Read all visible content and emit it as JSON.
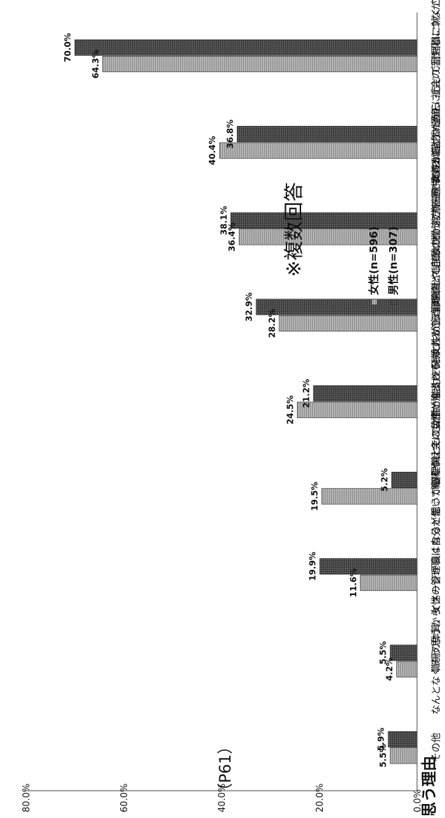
{
  "chart_data": {
    "type": "bar",
    "orientation": "horizontal",
    "categories": [
      "女性が能力・適正に応じて管理職に就くことは当然だから",
      "管理職として女性が能力を発揮することは経済、社会の活性化につながるから",
      "女性が管理職として自分の働き方を選べるのは当然だから",
      "管理職として女性が能力を発揮することは会社や組織にとって有益であるから",
      "職場や社会に女性が進出して欲しいから",
      "女性の管理職は自分が働いていくうえでの目標となるから",
      "職場の体質、イメージが良くなると思うから",
      "なんとなくそう思うから",
      "その他"
    ],
    "series": [
      {
        "name": "女性(n=596)",
        "values": [
          64.3,
          40.4,
          36.4,
          28.2,
          24.5,
          19.5,
          11.6,
          4.2,
          5.5
        ],
        "color": "#a9a9a9"
      },
      {
        "name": "男性(n=307)",
        "values": [
          70.0,
          36.8,
          38.1,
          32.9,
          21.2,
          5.2,
          19.9,
          5.5,
          5.9
        ],
        "color": "#3f3f3f"
      }
    ],
    "value_labels": [
      [
        "64.3%",
        "40.4%",
        "36.4%",
        "28.2%",
        "24.5%",
        "19.5%",
        "11.6%",
        "4.2%",
        "5.5%"
      ],
      [
        "70.0%",
        "36.8%",
        "38.1%",
        "32.9%",
        "21.2%",
        "5.2%",
        "19.9%",
        "5.5%",
        "5.9%"
      ]
    ],
    "value_axis": {
      "range": [
        0,
        80
      ],
      "ticks": [
        0,
        20,
        40,
        60,
        80
      ],
      "tick_labels": [
        "0.0%",
        "20.0%",
        "40.0%",
        "60.0%",
        "80.0%"
      ]
    },
    "legend_position": "right",
    "grid": false,
    "annotation": "※複数回答",
    "page_ref": "（P61）",
    "partial_title": "思う理由"
  }
}
